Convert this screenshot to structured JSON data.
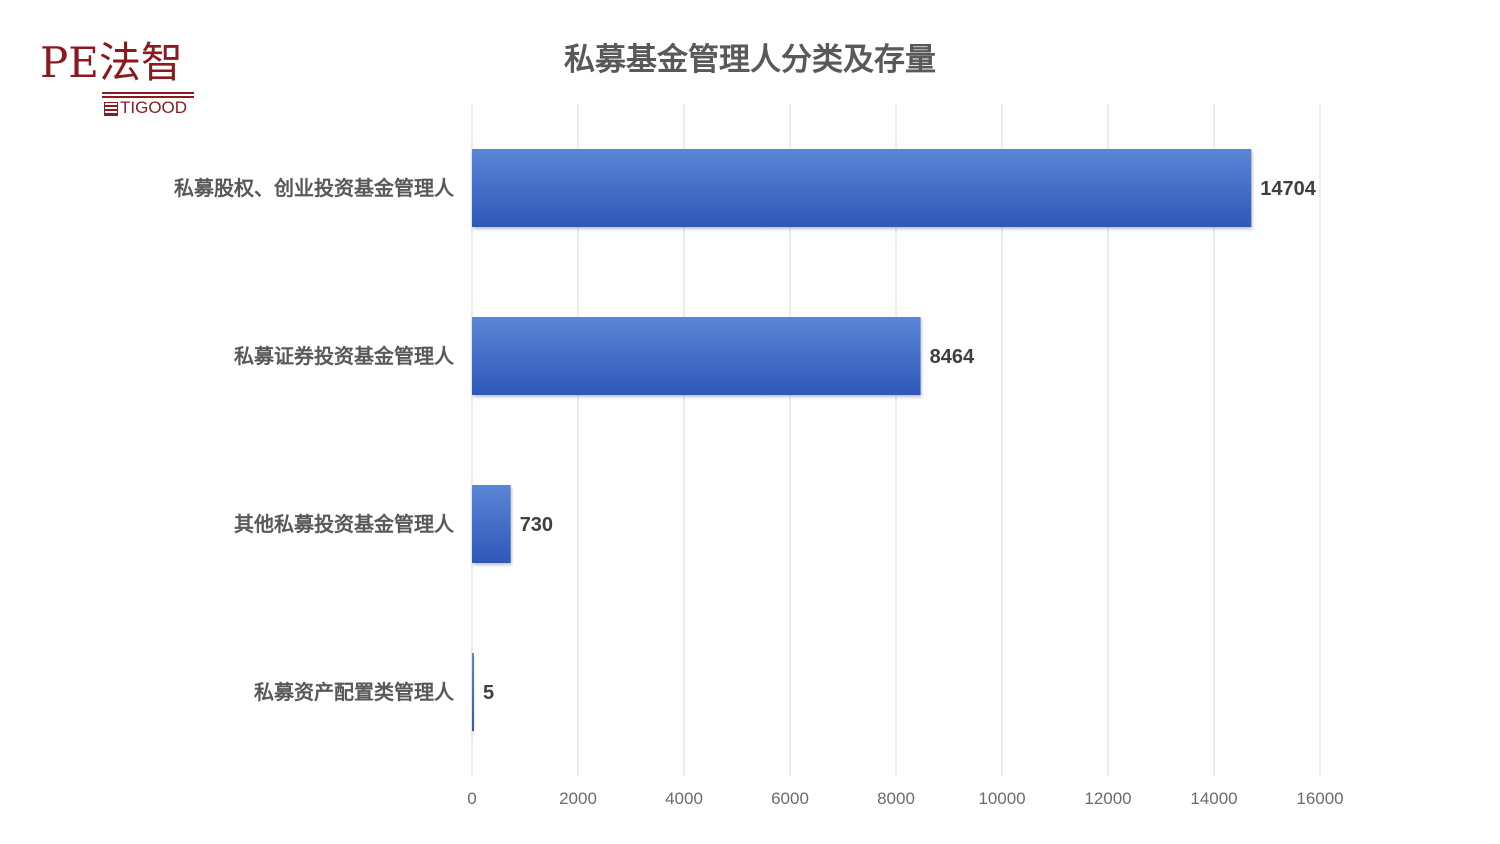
{
  "logo": {
    "main_text": "PE法智",
    "sub_text": "TIGOOD"
  },
  "colors": {
    "bar": "#3a66c4",
    "bar_light": "#5a86d6",
    "bar_dark": "#2e58b8",
    "grid": "#d9d9d9",
    "logo": "#8b1a1f",
    "text": "#595959"
  },
  "chart_data": {
    "type": "bar",
    "orientation": "horizontal",
    "title": "私募基金管理人分类及存量",
    "categories": [
      "私募股权、创业投资基金管理人",
      "私募证券投资基金管理人",
      "其他私募投资基金管理人",
      "私募资产配置类管理人"
    ],
    "values": [
      14704,
      8464,
      730,
      5
    ],
    "xlim": [
      0,
      16000
    ],
    "x_ticks": [
      0,
      2000,
      4000,
      6000,
      8000,
      10000,
      12000,
      14000,
      16000
    ],
    "grid": "vertical",
    "data_labels": true,
    "legend": "none"
  }
}
